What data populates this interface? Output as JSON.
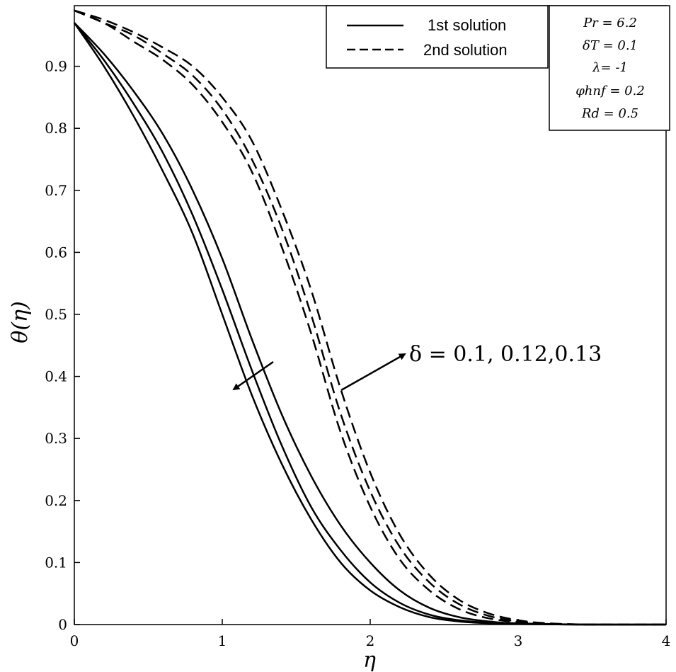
{
  "chart_data": {
    "type": "line",
    "title": "",
    "xlabel": "η",
    "ylabel": "θ(η)",
    "xlim": [
      0,
      4
    ],
    "ylim": [
      0,
      1
    ],
    "xticks": [
      0,
      1,
      2,
      3,
      4
    ],
    "xtick_labels": [
      "0",
      "1",
      "2",
      "3",
      "4"
    ],
    "yticks": [
      0,
      0.1,
      0.2,
      0.3,
      0.4,
      0.5,
      0.6,
      0.7,
      0.8,
      0.9
    ],
    "ytick_labels": [
      "0",
      "0.1",
      "0.2",
      "0.3",
      "0.4",
      "0.5",
      "0.6",
      "0.7",
      "0.8",
      "0.9"
    ],
    "legend": {
      "placement": "top-right",
      "entries": [
        {
          "label": "1st solution",
          "style": "solid"
        },
        {
          "label": "2nd solution",
          "style": "dashed"
        }
      ]
    },
    "parameters": [
      "Pr = 6.2",
      "δT = 0.1",
      "λ=  -1",
      "φhnf = 0.2",
      "Rd = 0.5"
    ],
    "annotation": "δ = 0.1, 0.12,0.13",
    "series": [
      {
        "name": "1st solution, δ = 0.1",
        "style": "solid",
        "x": [
          0,
          0.2,
          0.4,
          0.6,
          0.8,
          1.0,
          1.2,
          1.4,
          1.6,
          1.8,
          2.0,
          2.2,
          2.4,
          2.6,
          2.8,
          3.0,
          3.5,
          4.0
        ],
        "y": [
          0.97,
          0.9,
          0.82,
          0.73,
          0.63,
          0.5,
          0.37,
          0.26,
          0.17,
          0.1,
          0.055,
          0.028,
          0.012,
          0.005,
          0.002,
          0.0008,
          0,
          0
        ]
      },
      {
        "name": "1st solution, δ = 0.12",
        "style": "solid",
        "x": [
          0,
          0.2,
          0.4,
          0.6,
          0.8,
          1.0,
          1.2,
          1.4,
          1.6,
          1.8,
          2.0,
          2.2,
          2.4,
          2.6,
          2.8,
          3.0,
          3.5,
          4.0
        ],
        "y": [
          0.97,
          0.91,
          0.84,
          0.76,
          0.66,
          0.54,
          0.41,
          0.29,
          0.19,
          0.12,
          0.068,
          0.035,
          0.016,
          0.007,
          0.003,
          0.001,
          0,
          0
        ]
      },
      {
        "name": "1st solution, δ = 0.13",
        "style": "solid",
        "x": [
          0,
          0.2,
          0.4,
          0.6,
          0.8,
          1.0,
          1.2,
          1.4,
          1.6,
          1.8,
          2.0,
          2.2,
          2.4,
          2.6,
          2.8,
          3.0,
          3.5,
          4.0
        ],
        "y": [
          0.97,
          0.92,
          0.86,
          0.79,
          0.7,
          0.59,
          0.46,
          0.34,
          0.24,
          0.16,
          0.1,
          0.055,
          0.027,
          0.012,
          0.005,
          0.002,
          0,
          0
        ]
      },
      {
        "name": "2nd solution, δ = 0.1",
        "style": "dashed",
        "x": [
          0,
          0.2,
          0.4,
          0.6,
          0.8,
          1.0,
          1.2,
          1.4,
          1.6,
          1.8,
          2.0,
          2.2,
          2.4,
          2.6,
          2.8,
          3.0,
          3.2,
          3.5,
          4.0
        ],
        "y": [
          0.99,
          0.97,
          0.94,
          0.91,
          0.87,
          0.81,
          0.73,
          0.61,
          0.47,
          0.31,
          0.19,
          0.105,
          0.055,
          0.025,
          0.01,
          0.004,
          0.001,
          0,
          0
        ]
      },
      {
        "name": "2nd solution, δ = 0.12",
        "style": "dashed",
        "x": [
          0,
          0.2,
          0.4,
          0.6,
          0.8,
          1.0,
          1.2,
          1.4,
          1.6,
          1.8,
          2.0,
          2.2,
          2.4,
          2.6,
          2.8,
          3.0,
          3.2,
          3.5,
          4.0
        ],
        "y": [
          0.99,
          0.97,
          0.95,
          0.92,
          0.885,
          0.83,
          0.75,
          0.64,
          0.5,
          0.34,
          0.215,
          0.125,
          0.068,
          0.033,
          0.014,
          0.005,
          0.0015,
          0,
          0
        ]
      },
      {
        "name": "2nd solution, δ = 0.13",
        "style": "dashed",
        "x": [
          0,
          0.2,
          0.4,
          0.6,
          0.8,
          1.0,
          1.2,
          1.4,
          1.6,
          1.8,
          2.0,
          2.2,
          2.4,
          2.6,
          2.8,
          3.0,
          3.2,
          3.5,
          4.0
        ],
        "y": [
          0.99,
          0.975,
          0.955,
          0.93,
          0.9,
          0.85,
          0.78,
          0.67,
          0.54,
          0.38,
          0.245,
          0.145,
          0.08,
          0.04,
          0.018,
          0.007,
          0.002,
          0,
          0
        ]
      }
    ]
  }
}
